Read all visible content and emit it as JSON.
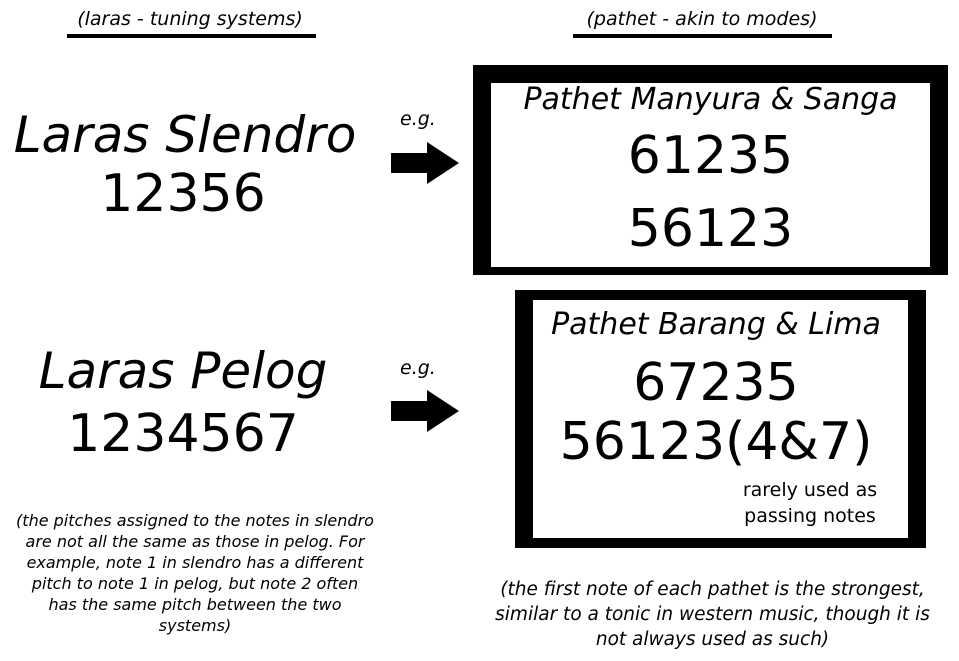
{
  "headers": {
    "left": "(laras - tuning systems)",
    "right": "(pathet - akin to modes)"
  },
  "slendro": {
    "title": "Laras Slendro",
    "notes": "12356",
    "eg": "e.g.",
    "pathet": {
      "title": "Pathet Manyura & Sanga",
      "lines": [
        "61235",
        "56123"
      ]
    }
  },
  "pelog": {
    "title": "Laras Pelog",
    "notes": "1234567",
    "eg": "e.g.",
    "pathet": {
      "title": "Pathet Barang & Lima",
      "lines": [
        "67235",
        "56123(4&7)"
      ],
      "note_lines": [
        "rarely used as",
        "passing notes"
      ]
    }
  },
  "footnotes": {
    "left": [
      "(the pitches assigned to the notes in slendro",
      "are not all the same as those in pelog. For",
      "example, note 1 in slendro has a different",
      "pitch to note 1 in pelog, but note 2 often",
      "has the same pitch between the two systems)"
    ],
    "right": [
      "(the first note of each pathet is the strongest,",
      "similar to a tonic in western music, though it is",
      "not always used as such)"
    ]
  },
  "icons": [
    "right-arrow-icon",
    "right-arrow-icon"
  ],
  "colors": {
    "ink": "#000000",
    "background": "#ffffff"
  }
}
